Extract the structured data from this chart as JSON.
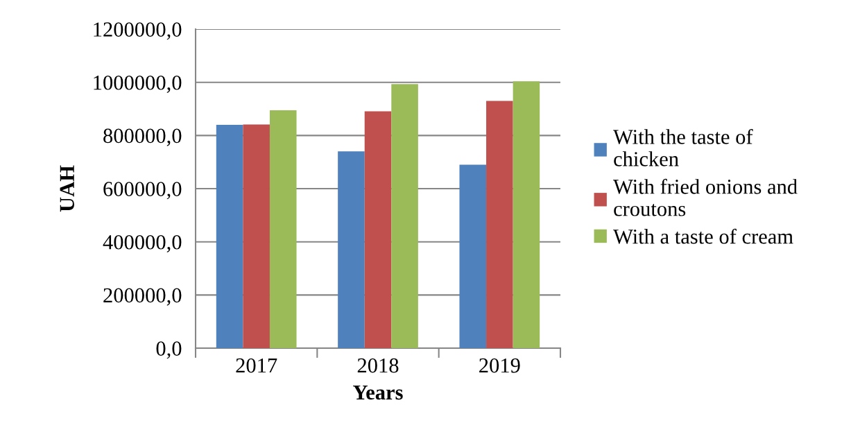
{
  "chart_data": {
    "type": "bar",
    "xlabel": "Years",
    "ylabel": "UAH",
    "categories": [
      "2017",
      "2018",
      "2019"
    ],
    "series": [
      {
        "name": "With the taste of chicken",
        "color": "#4f81bd",
        "values": [
          840000,
          740000,
          690000
        ]
      },
      {
        "name": "With fried onions and croutons",
        "color": "#c0504d",
        "values": [
          841000,
          891000,
          930000
        ]
      },
      {
        "name": "With a taste of cream",
        "color": "#9bbb59",
        "values": [
          895000,
          993000,
          1004000
        ]
      }
    ],
    "ylim": [
      0,
      1200000
    ],
    "yticks": [
      {
        "value": 0,
        "label": "0,0"
      },
      {
        "value": 200000,
        "label": "200000,0"
      },
      {
        "value": 400000,
        "label": "400000,0"
      },
      {
        "value": 600000,
        "label": "600000,0"
      },
      {
        "value": 800000,
        "label": "800000,0"
      },
      {
        "value": 1000000,
        "label": "1000000,0"
      },
      {
        "value": 1200000,
        "label": "1200000,0"
      }
    ],
    "grid": "y",
    "legend": "right"
  }
}
